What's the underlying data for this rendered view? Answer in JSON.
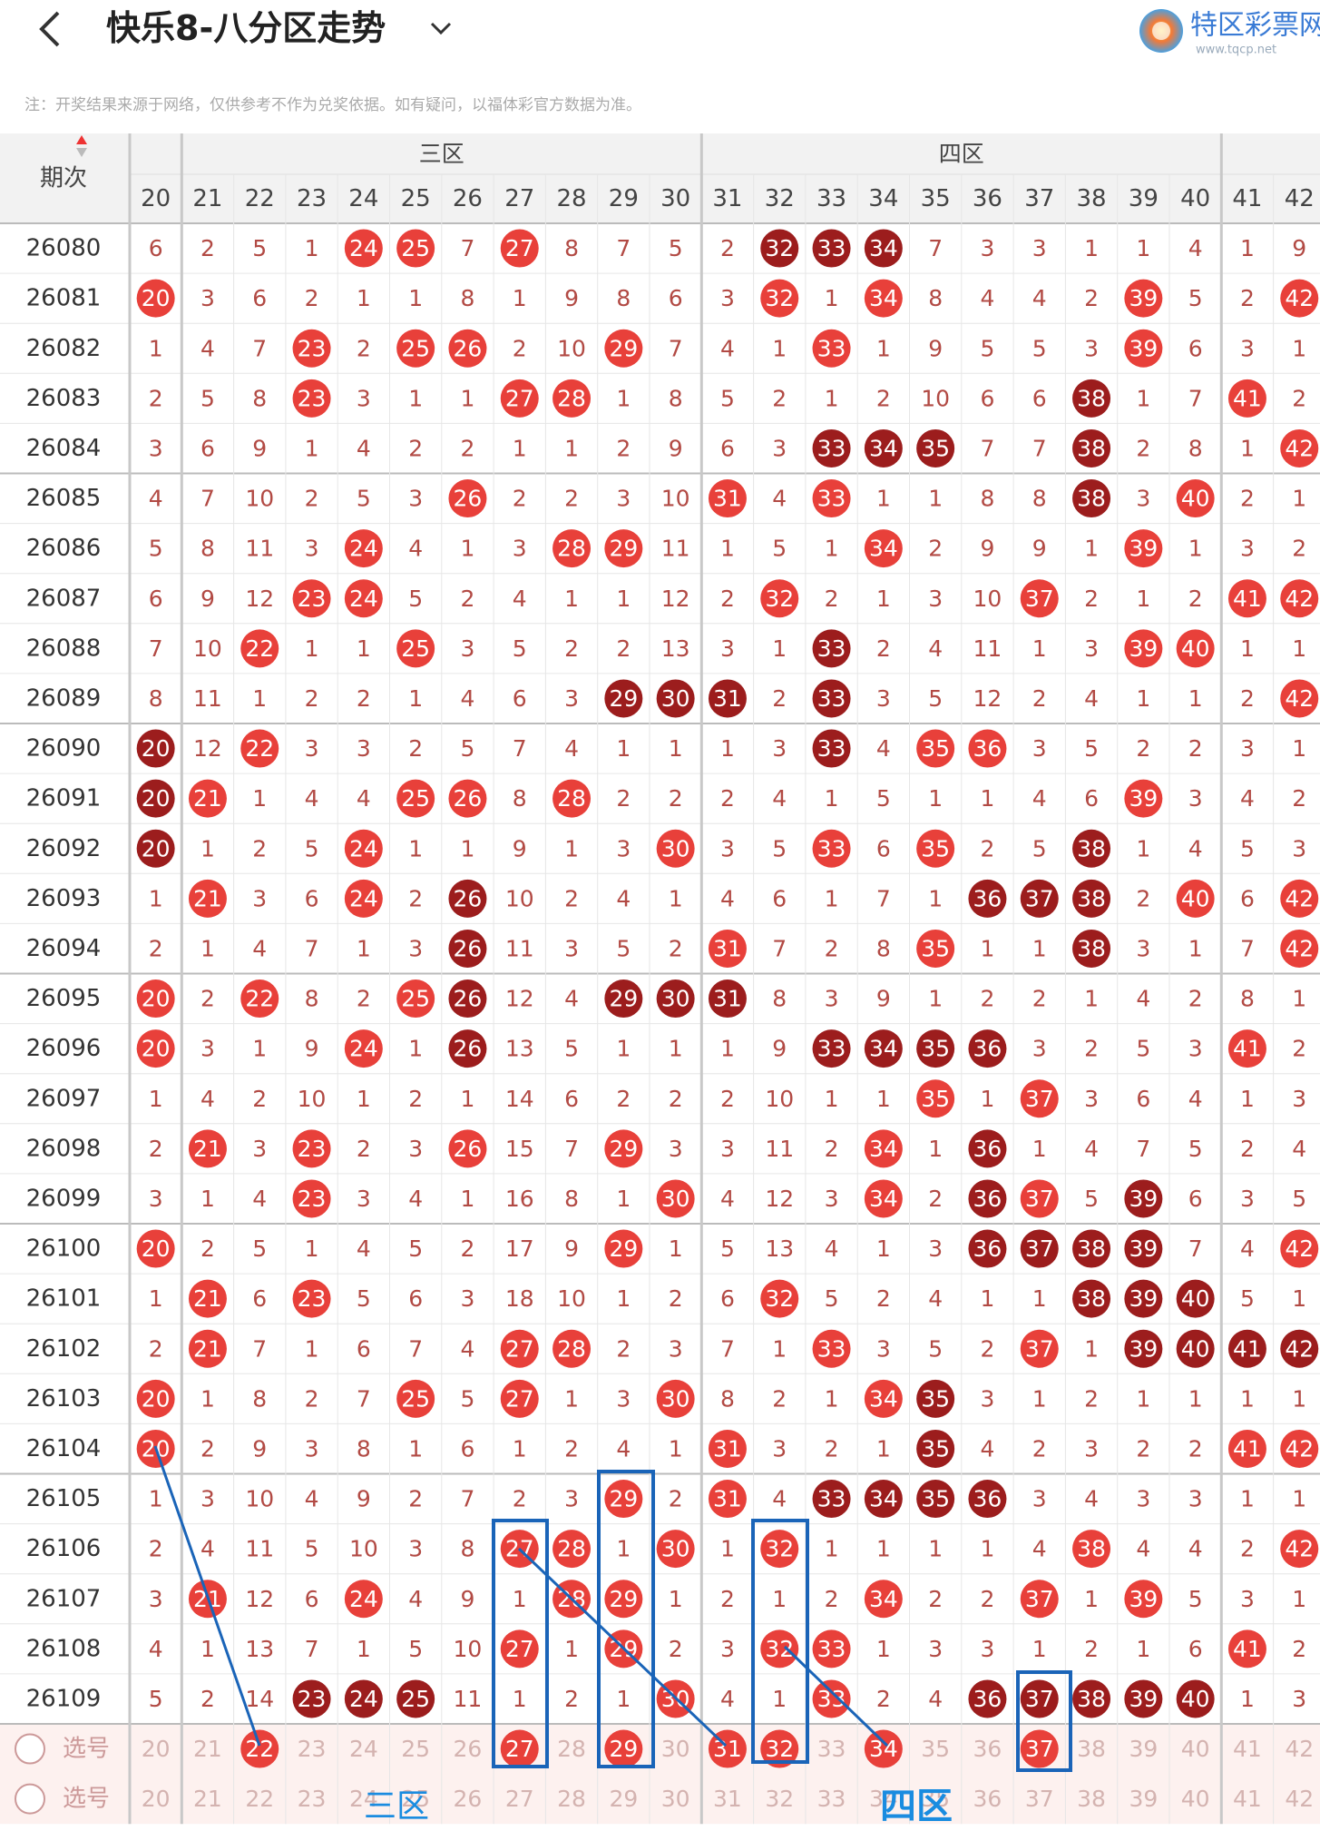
{
  "header": {
    "title": "快乐8-八分区走势",
    "logo_name": "特区彩票网",
    "logo_url": "www.tqcp.net"
  },
  "note": "注：开奖结果来源于网络，仅供参考不作为兑奖依据。如有疑问，以福体彩官方数据为准。",
  "table": {
    "period_label": "期次",
    "columns": [
      20,
      21,
      22,
      23,
      24,
      25,
      26,
      27,
      28,
      29,
      30,
      31,
      32,
      33,
      34,
      35,
      36,
      37,
      38,
      39,
      40,
      41,
      42
    ],
    "zones": [
      {
        "label": "三区",
        "columns": [
          21,
          22,
          23,
          24,
          25,
          26,
          27,
          28,
          29,
          30
        ]
      },
      {
        "label": "四区",
        "columns": [
          31,
          32,
          33,
          34,
          35,
          36,
          37,
          38,
          39,
          40
        ]
      }
    ],
    "rows": [
      {
        "period": "26080",
        "cells": [
          6,
          2,
          5,
          1,
          24,
          25,
          7,
          27,
          8,
          7,
          5,
          2,
          32,
          33,
          34,
          7,
          3,
          3,
          1,
          1,
          4,
          1,
          9
        ]
      },
      {
        "period": "26081",
        "cells": [
          20,
          3,
          6,
          2,
          1,
          1,
          8,
          1,
          9,
          8,
          6,
          3,
          32,
          1,
          34,
          8,
          4,
          4,
          2,
          39,
          5,
          2,
          42
        ]
      },
      {
        "period": "26082",
        "cells": [
          1,
          4,
          7,
          23,
          2,
          25,
          26,
          2,
          10,
          29,
          7,
          4,
          1,
          33,
          1,
          9,
          5,
          5,
          3,
          39,
          6,
          3,
          1
        ]
      },
      {
        "period": "26083",
        "cells": [
          2,
          5,
          8,
          23,
          3,
          1,
          1,
          27,
          28,
          1,
          8,
          5,
          2,
          1,
          2,
          10,
          6,
          6,
          38,
          1,
          7,
          41,
          2
        ]
      },
      {
        "period": "26084",
        "cells": [
          3,
          6,
          9,
          1,
          4,
          2,
          2,
          1,
          1,
          2,
          9,
          6,
          3,
          33,
          34,
          35,
          7,
          7,
          38,
          2,
          8,
          1,
          42
        ]
      },
      {
        "period": "26085",
        "cells": [
          4,
          7,
          10,
          2,
          5,
          3,
          26,
          2,
          2,
          3,
          10,
          31,
          4,
          33,
          1,
          1,
          8,
          8,
          38,
          3,
          40,
          2,
          1
        ]
      },
      {
        "period": "26086",
        "cells": [
          5,
          8,
          11,
          3,
          24,
          4,
          1,
          3,
          28,
          29,
          11,
          1,
          5,
          1,
          34,
          2,
          9,
          9,
          1,
          39,
          1,
          3,
          2
        ]
      },
      {
        "period": "26087",
        "cells": [
          6,
          9,
          12,
          23,
          24,
          5,
          2,
          4,
          1,
          1,
          12,
          2,
          32,
          2,
          1,
          3,
          10,
          37,
          2,
          1,
          2,
          41,
          42
        ]
      },
      {
        "period": "26088",
        "cells": [
          7,
          10,
          22,
          1,
          1,
          25,
          3,
          5,
          2,
          2,
          13,
          3,
          1,
          33,
          2,
          4,
          11,
          1,
          3,
          39,
          40,
          1,
          1
        ]
      },
      {
        "period": "26089",
        "cells": [
          8,
          11,
          1,
          2,
          2,
          1,
          4,
          6,
          3,
          29,
          30,
          31,
          2,
          33,
          3,
          5,
          12,
          2,
          4,
          1,
          1,
          2,
          42
        ]
      },
      {
        "period": "26090",
        "cells": [
          20,
          12,
          22,
          3,
          3,
          2,
          5,
          7,
          4,
          1,
          1,
          1,
          3,
          33,
          4,
          35,
          36,
          3,
          5,
          2,
          2,
          3,
          1
        ]
      },
      {
        "period": "26091",
        "cells": [
          20,
          21,
          1,
          4,
          4,
          25,
          26,
          8,
          28,
          2,
          2,
          2,
          4,
          1,
          5,
          1,
          1,
          4,
          6,
          39,
          3,
          4,
          2
        ]
      },
      {
        "period": "26092",
        "cells": [
          20,
          1,
          2,
          5,
          24,
          1,
          1,
          9,
          1,
          3,
          30,
          3,
          5,
          33,
          6,
          35,
          2,
          5,
          38,
          1,
          4,
          5,
          3
        ]
      },
      {
        "period": "26093",
        "cells": [
          1,
          21,
          3,
          6,
          24,
          2,
          26,
          10,
          2,
          4,
          1,
          4,
          6,
          1,
          7,
          1,
          36,
          37,
          38,
          2,
          40,
          6,
          42
        ]
      },
      {
        "period": "26094",
        "cells": [
          2,
          1,
          4,
          7,
          1,
          3,
          26,
          11,
          3,
          5,
          2,
          31,
          7,
          2,
          8,
          35,
          1,
          1,
          38,
          3,
          1,
          7,
          42
        ]
      },
      {
        "period": "26095",
        "cells": [
          20,
          2,
          22,
          8,
          2,
          25,
          26,
          12,
          4,
          29,
          30,
          31,
          8,
          3,
          9,
          1,
          2,
          2,
          1,
          4,
          2,
          8,
          1
        ]
      },
      {
        "period": "26096",
        "cells": [
          20,
          3,
          1,
          9,
          24,
          1,
          26,
          13,
          5,
          1,
          1,
          1,
          9,
          33,
          34,
          35,
          36,
          3,
          2,
          5,
          3,
          41,
          2
        ]
      },
      {
        "period": "26097",
        "cells": [
          1,
          4,
          2,
          10,
          1,
          2,
          1,
          14,
          6,
          2,
          2,
          2,
          10,
          1,
          1,
          35,
          1,
          37,
          3,
          6,
          4,
          1,
          3
        ]
      },
      {
        "period": "26098",
        "cells": [
          2,
          21,
          3,
          23,
          2,
          3,
          26,
          15,
          7,
          29,
          3,
          3,
          11,
          2,
          34,
          1,
          36,
          1,
          4,
          7,
          5,
          2,
          4
        ]
      },
      {
        "period": "26099",
        "cells": [
          3,
          1,
          4,
          23,
          3,
          4,
          1,
          16,
          8,
          1,
          30,
          4,
          12,
          3,
          34,
          2,
          36,
          37,
          5,
          39,
          6,
          3,
          5
        ]
      },
      {
        "period": "26100",
        "cells": [
          20,
          2,
          5,
          1,
          4,
          5,
          2,
          17,
          9,
          29,
          1,
          5,
          13,
          4,
          1,
          3,
          36,
          37,
          38,
          39,
          7,
          4,
          42
        ]
      },
      {
        "period": "26101",
        "cells": [
          1,
          21,
          6,
          23,
          5,
          6,
          3,
          18,
          10,
          1,
          2,
          6,
          32,
          5,
          2,
          4,
          1,
          1,
          38,
          39,
          40,
          5,
          1
        ]
      },
      {
        "period": "26102",
        "cells": [
          2,
          21,
          7,
          1,
          6,
          7,
          4,
          27,
          28,
          2,
          3,
          7,
          1,
          33,
          3,
          5,
          2,
          37,
          1,
          39,
          40,
          41,
          42
        ]
      },
      {
        "period": "26103",
        "cells": [
          20,
          1,
          8,
          2,
          7,
          25,
          5,
          27,
          1,
          3,
          30,
          8,
          2,
          1,
          34,
          35,
          3,
          1,
          2,
          1,
          1,
          1,
          1
        ]
      },
      {
        "period": "26104",
        "cells": [
          20,
          2,
          9,
          3,
          8,
          1,
          6,
          1,
          2,
          4,
          1,
          31,
          3,
          2,
          1,
          35,
          4,
          2,
          3,
          2,
          2,
          41,
          42
        ]
      },
      {
        "period": "26105",
        "cells": [
          1,
          3,
          10,
          4,
          9,
          2,
          7,
          2,
          3,
          29,
          2,
          31,
          4,
          33,
          34,
          35,
          36,
          3,
          4,
          3,
          3,
          1,
          1
        ]
      },
      {
        "period": "26106",
        "cells": [
          2,
          4,
          11,
          5,
          10,
          3,
          8,
          27,
          28,
          1,
          30,
          1,
          32,
          1,
          1,
          1,
          1,
          4,
          38,
          4,
          4,
          2,
          42
        ]
      },
      {
        "period": "26107",
        "cells": [
          3,
          21,
          12,
          6,
          24,
          4,
          9,
          1,
          28,
          29,
          1,
          2,
          1,
          2,
          34,
          2,
          2,
          37,
          1,
          39,
          5,
          3,
          1
        ]
      },
      {
        "period": "26108",
        "cells": [
          4,
          1,
          13,
          7,
          1,
          5,
          10,
          27,
          1,
          29,
          2,
          3,
          32,
          33,
          1,
          3,
          3,
          1,
          2,
          1,
          6,
          41,
          2
        ]
      },
      {
        "period": "26109",
        "cells": [
          5,
          2,
          14,
          23,
          24,
          25,
          11,
          1,
          2,
          1,
          30,
          4,
          1,
          33,
          2,
          4,
          36,
          37,
          38,
          39,
          40,
          1,
          3
        ]
      }
    ],
    "selections": [
      {
        "label": "选号",
        "selected": [
          22,
          27,
          29,
          31,
          32,
          34,
          37
        ]
      },
      {
        "label": "选号",
        "selected": []
      }
    ]
  },
  "annotations": [
    "三区",
    "四区"
  ]
}
